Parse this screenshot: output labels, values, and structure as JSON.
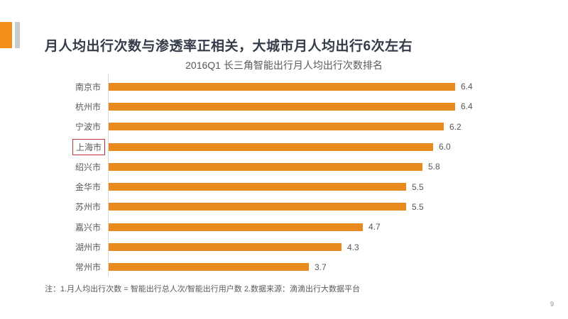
{
  "page": {
    "title": "月人均出行次数与渗透率正相关，大城市月人均出行6次左右",
    "footnote": "注：1.月人均出行次数 = 智能出行总人次/智能出行用户数  2.数据来源：滴滴出行大数据平台",
    "page_number": "9"
  },
  "colors": {
    "accent_orange_square": "#F39019",
    "header_gray_bar": "#C9CACC",
    "title_text": "#343B49",
    "muted_text": "#595959",
    "bar_orange": "#E98A1E",
    "highlight_red": "#C0393B",
    "axis_line": "#D9D9D9"
  },
  "chart_data": {
    "type": "bar",
    "orientation": "horizontal",
    "title": "2016Q1 长三角智能出行月人均出行次数排名",
    "categories": [
      "南京市",
      "杭州市",
      "宁波市",
      "上海市",
      "绍兴市",
      "金华市",
      "苏州市",
      "嘉兴市",
      "湖州市",
      "常州市"
    ],
    "values": [
      6.4,
      6.4,
      6.2,
      6.0,
      5.8,
      5.5,
      5.5,
      4.7,
      4.3,
      3.7
    ],
    "value_labels": [
      "6.4",
      "6.4",
      "6.2",
      "6.0",
      "5.8",
      "5.5",
      "5.5",
      "4.7",
      "4.3",
      "3.7"
    ],
    "highlighted_category": "上海市",
    "xlim": [
      0,
      6.8
    ],
    "data_labels": true,
    "grid": false,
    "legend": false
  }
}
